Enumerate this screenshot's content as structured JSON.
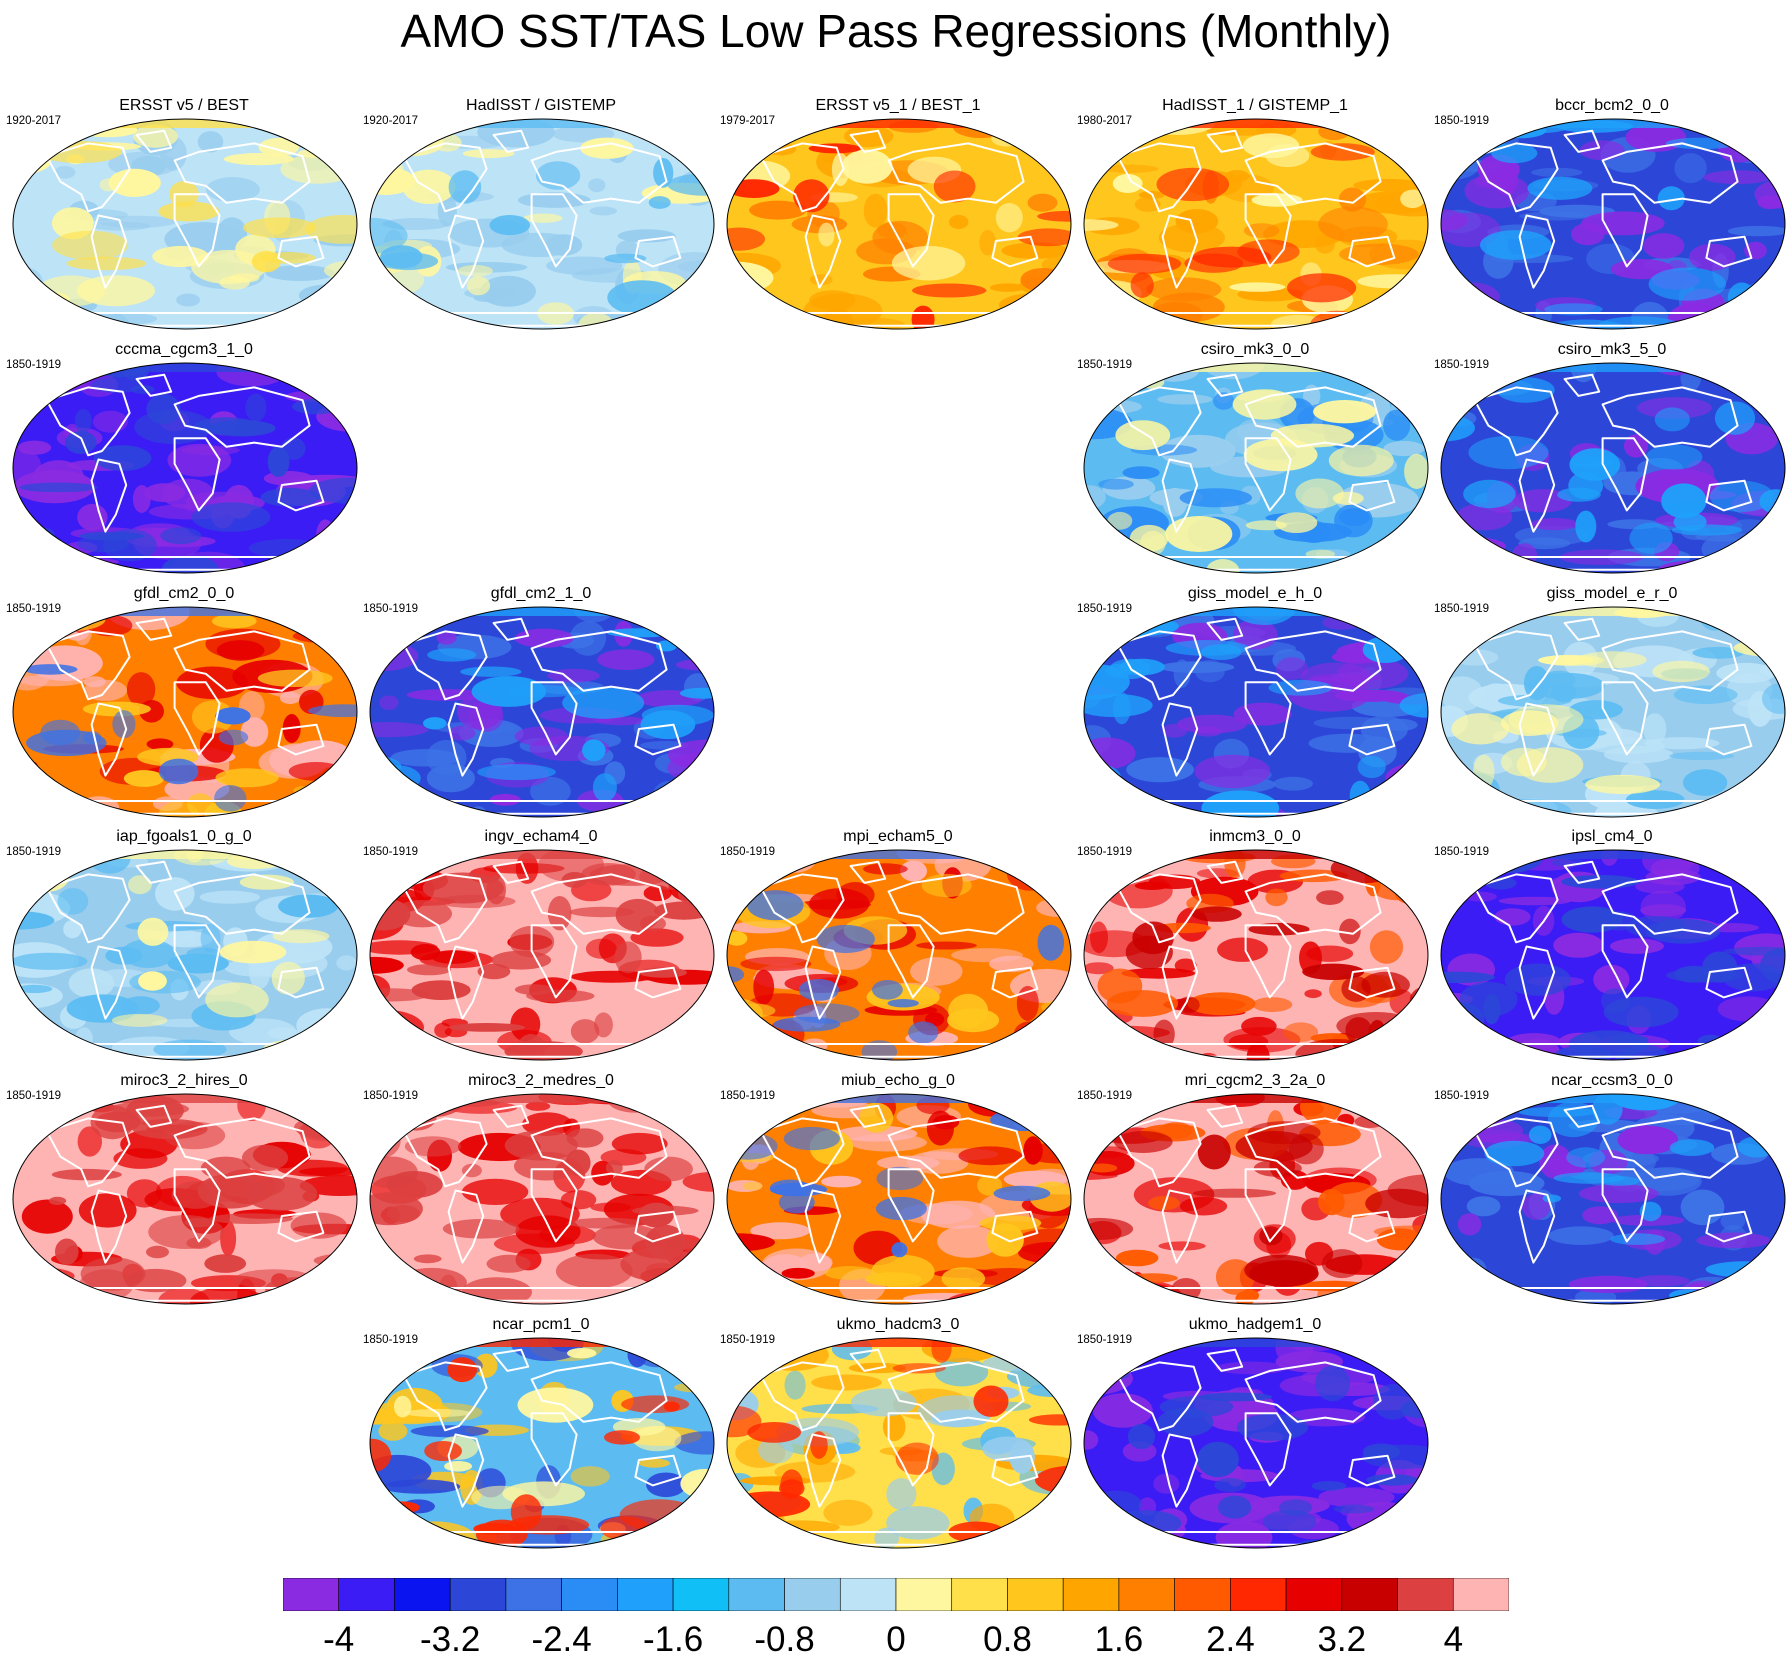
{
  "title": "AMO SST/TAS Low Pass Regressions (Monthly)",
  "panels": [
    {
      "title": "ERSST v5 / BEST",
      "period": "1920-2017",
      "base": "mild_obs",
      "row": 0,
      "col": 0
    },
    {
      "title": "HadISST / GISTEMP",
      "period": "1920-2017",
      "base": "mild_obs2",
      "row": 0,
      "col": 1
    },
    {
      "title": "ERSST v5_1 / BEST_1",
      "period": "1979-2017",
      "base": "warm_obs",
      "row": 0,
      "col": 2
    },
    {
      "title": "HadISST_1 / GISTEMP_1",
      "period": "1980-2017",
      "base": "warm_obs",
      "row": 0,
      "col": 3
    },
    {
      "title": "bccr_bcm2_0_0",
      "period": "1850-1919",
      "base": "cold",
      "row": 0,
      "col": 4
    },
    {
      "title": "cccma_cgcm3_1_0",
      "period": "1850-1919",
      "base": "very_cold",
      "row": 1,
      "col": 0
    },
    {
      "title": "csiro_mk3_0_0",
      "period": "1850-1919",
      "base": "cool",
      "row": 1,
      "col": 3
    },
    {
      "title": "csiro_mk3_5_0",
      "period": "1850-1919",
      "base": "cold",
      "row": 1,
      "col": 4
    },
    {
      "title": "gfdl_cm2_0_0",
      "period": "1850-1919",
      "base": "hot",
      "row": 2,
      "col": 0
    },
    {
      "title": "gfdl_cm2_1_0",
      "period": "1850-1919",
      "base": "cold",
      "row": 2,
      "col": 1
    },
    {
      "title": "giss_model_e_h_0",
      "period": "1850-1919",
      "base": "cold",
      "row": 2,
      "col": 3
    },
    {
      "title": "giss_model_e_r_0",
      "period": "1850-1919",
      "base": "cool_light",
      "row": 2,
      "col": 4
    },
    {
      "title": "iap_fgoals1_0_g_0",
      "period": "1850-1919",
      "base": "cool_light",
      "row": 3,
      "col": 0
    },
    {
      "title": "ingv_echam4_0",
      "period": "1850-1919",
      "base": "saturated",
      "row": 3,
      "col": 1
    },
    {
      "title": "mpi_echam5_0",
      "period": "1850-1919",
      "base": "hot",
      "row": 3,
      "col": 2
    },
    {
      "title": "inmcm3_0_0",
      "period": "1850-1919",
      "base": "hot_sat",
      "row": 3,
      "col": 3
    },
    {
      "title": "ipsl_cm4_0",
      "period": "1850-1919",
      "base": "very_cold",
      "row": 3,
      "col": 4
    },
    {
      "title": "miroc3_2_hires_0",
      "period": "1850-1919",
      "base": "saturated",
      "row": 4,
      "col": 0
    },
    {
      "title": "miroc3_2_medres_0",
      "period": "1850-1919",
      "base": "saturated",
      "row": 4,
      "col": 1
    },
    {
      "title": "miub_echo_g_0",
      "period": "1850-1919",
      "base": "hot",
      "row": 4,
      "col": 2
    },
    {
      "title": "mri_cgcm2_3_2a_0",
      "period": "1850-1919",
      "base": "hot_sat",
      "row": 4,
      "col": 3
    },
    {
      "title": "ncar_ccsm3_0_0",
      "period": "1850-1919",
      "base": "cold",
      "row": 4,
      "col": 4
    },
    {
      "title": "ncar_pcm1_0",
      "period": "1850-1919",
      "base": "mixed",
      "row": 5,
      "col": 1
    },
    {
      "title": "ukmo_hadcm3_0",
      "period": "1850-1919",
      "base": "mixed_warm",
      "row": 5,
      "col": 2
    },
    {
      "title": "ukmo_hadgem1_0",
      "period": "1850-1919",
      "base": "very_cold",
      "row": 5,
      "col": 3
    }
  ],
  "colorbar": {
    "colors": [
      "#8a2be2",
      "#3c1cf5",
      "#0a14f0",
      "#2c47d8",
      "#3d72e6",
      "#2a8cf5",
      "#1fa0fa",
      "#10bff6",
      "#5cbcf2",
      "#99cdee",
      "#bde3f7",
      "#fff7a0",
      "#ffe04a",
      "#ffc61e",
      "#ffa500",
      "#ff8000",
      "#ff5a00",
      "#ff2800",
      "#e60000",
      "#c80000",
      "#dc4040",
      "#ffb4b4"
    ],
    "ticks": [
      "-4",
      "-3.2",
      "-2.4",
      "-1.6",
      "-0.8",
      "0",
      "0.8",
      "1.6",
      "2.4",
      "3.2",
      "4"
    ]
  }
}
